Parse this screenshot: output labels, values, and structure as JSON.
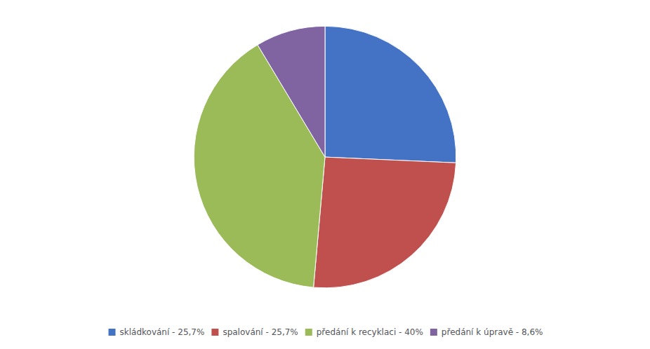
{
  "chart_data": {
    "type": "pie",
    "categories": [
      "skládkování - 25,7%",
      "spalování - 25,7%",
      "předání k recyklaci - 40%",
      "předání k úpravě - 8,6%"
    ],
    "values": [
      25.7,
      25.7,
      40.0,
      8.6
    ],
    "colors": [
      "#4472C4",
      "#C0504D",
      "#9BBB59",
      "#8064A2"
    ],
    "legend": "bottom"
  }
}
